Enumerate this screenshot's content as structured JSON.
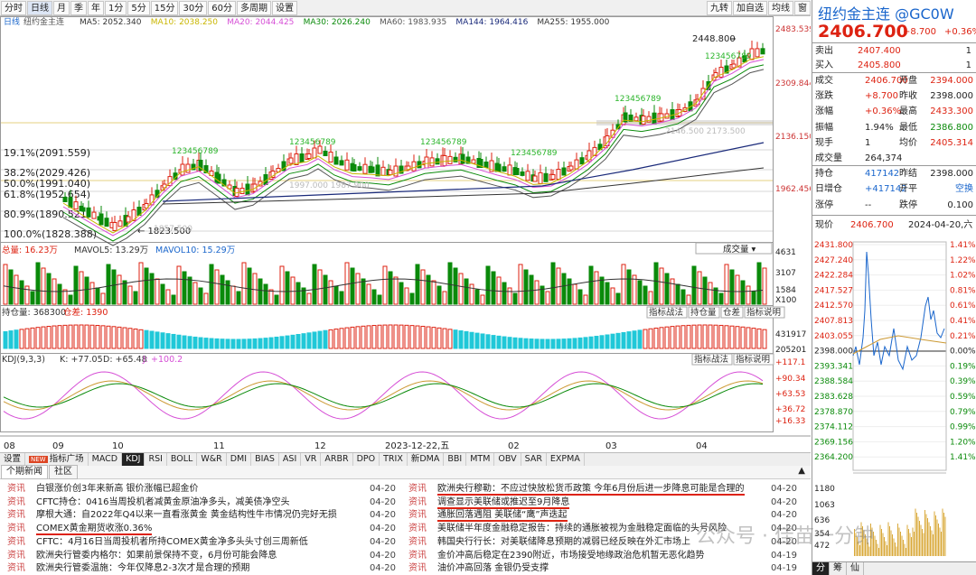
{
  "toolbar": {
    "left": [
      "分时",
      "日线",
      "月",
      "季",
      "年",
      "1分",
      "5分",
      "15分",
      "30分",
      "60分",
      "多周期",
      "设置"
    ],
    "right": [
      "九转",
      "加自选",
      "均线",
      "窗"
    ]
  },
  "chart": {
    "title": "日线",
    "name": "纽约金主连",
    "ma": [
      {
        "label": "MA5: 2052.340",
        "color": "#333"
      },
      {
        "label": "MA10: 2038.250",
        "color": "#c9b600"
      },
      {
        "label": "MA20: 2044.425",
        "color": "#d64fd6"
      },
      {
        "label": "MA30: 2026.240",
        "color": "#0a8a0a"
      },
      {
        "label": "MA60: 1983.935",
        "color": "#555"
      },
      {
        "label": "MA144: 1964.416",
        "color": "#1a2a7a"
      },
      {
        "label": "MA255: 1955.000",
        "color": "#333"
      }
    ],
    "yaxis": [
      "2483.539",
      "2309.844",
      "2136.150",
      "1962.456"
    ],
    "fib": [
      "19.1%(2091.559)",
      "38.2%(2029.426)",
      "50.0%(1991.040)",
      "61.8%(1952.654)",
      "80.9%(1890.521)",
      "100.0%(1828.388)"
    ],
    "high_label": "2448.800",
    "low_label": "1823.500",
    "mid_labels": [
      "2146.500",
      "2173.500",
      "1857.500",
      "1997.000",
      "1987.900"
    ],
    "volume": {
      "title": "总量: 16.23万",
      "mavol5": "MAVOL5: 13.29万",
      "mavol10": "MAVOL10: 15.29万",
      "dropdown": "成交量",
      "yaxis": [
        "4631",
        "3107",
        "1584"
      ],
      "unit": "X100"
    },
    "oi": {
      "title": "持仓量: 368300",
      "zengcang": "仓差: 1390",
      "buttons": [
        "指标战法",
        "持仓量",
        "仓差",
        "指标说明"
      ],
      "yaxis": [
        "431917",
        "205201"
      ]
    },
    "kdj": {
      "title": "KDJ(9,3,3)",
      "k": "K: +77.05",
      "d": "D: +65.48",
      "j": "J: +100.2",
      "buttons": [
        "指标战法",
        "指标说明"
      ],
      "yaxis": [
        "+117.1",
        "+90.34",
        "+63.53",
        "+36.72",
        "+16.33"
      ]
    },
    "xaxis": [
      "08",
      "09",
      "10",
      "11",
      "12",
      "2023-12-22,五",
      "02",
      "03",
      "04"
    ]
  },
  "subtabs": [
    "设置",
    "指标广场",
    "MACD",
    "KDJ",
    "RSI",
    "BOLL",
    "W&R",
    "DMI",
    "BIAS",
    "ASI",
    "VR",
    "ARBR",
    "DPO",
    "TRIX",
    "新DMA",
    "BBI",
    "MTM",
    "OBV",
    "SAR",
    "EXPMA"
  ],
  "new_badge": "NEW",
  "newstabs": [
    "个期新闻",
    "社区"
  ],
  "news_left": [
    {
      "tag": "资讯",
      "text": "白银涨价创3年来新高 银价涨幅已超金价",
      "date": "04-20"
    },
    {
      "tag": "资讯",
      "text": "CFTC持仓：0416当周投机者减黄金原油净多头，减美债净空头",
      "date": "04-20"
    },
    {
      "tag": "资讯",
      "text": "摩根大通：自2022年Q4以来一直看涨黄金 黄金结构性牛市情况仍完好无损",
      "date": "04-20"
    },
    {
      "tag": "资讯",
      "text": "COMEX黄金期货收涨0.36%",
      "date": "04-20"
    },
    {
      "tag": "资讯",
      "text": "CFTC：4月16日当周投机者所持COMEX黄金净多头头寸创三周新低",
      "date": "04-20"
    },
    {
      "tag": "资讯",
      "text": "欧洲央行管委内格尔：如果前景保持不变，6月份可能会降息",
      "date": "04-20"
    },
    {
      "tag": "资讯",
      "text": "欧洲央行管委温施：今年仅降息2-3次才是合理的预期",
      "date": "04-20"
    }
  ],
  "news_right": [
    {
      "tag": "资讯",
      "text": "欧洲央行穆勒：不应过快放松货币政策 今年6月份后进一步降息可能是合理的",
      "date": "04-20"
    },
    {
      "tag": "资讯",
      "text": "调查显示美联储或推迟至9月降息",
      "date": "04-20"
    },
    {
      "tag": "资讯",
      "text": "通胀回落遇阻 美联储“鹰”声迭起",
      "date": "04-20"
    },
    {
      "tag": "资讯",
      "text": "美联储半年度金融稳定报告：持续的通胀被视为金融稳定面临的头号风险",
      "date": "04-20"
    },
    {
      "tag": "资讯",
      "text": "韩国央行行长：对美联储降息预期的减弱已经反映在外汇市场上",
      "date": "04-20"
    },
    {
      "tag": "资讯",
      "text": "金价冲高后稳定在2390附近，市场接受地缘政治危机暂无恶化趋势",
      "date": "04-19"
    },
    {
      "tag": "资讯",
      "text": "油价冲高回落 金银仍受支撑",
      "date": "04-19"
    }
  ],
  "side": {
    "symbol": "纽约金主连 @GC0W",
    "price": "2406.700",
    "change": "+8.700",
    "pct": "+0.36%",
    "sell": {
      "label": "卖出",
      "price": "2407.400",
      "qty": "1"
    },
    "buy": {
      "label": "买入",
      "price": "2405.800",
      "qty": "1"
    },
    "rows": [
      [
        "成交",
        "2406.700",
        "开盘",
        "2394.000"
      ],
      [
        "涨跌",
        "+8.700",
        "昨收",
        "2398.000"
      ],
      [
        "涨幅",
        "+0.36%",
        "最高",
        "2433.300"
      ],
      [
        "振幅",
        "1.94%",
        "最低",
        "2386.800"
      ],
      [
        "现手",
        "1",
        "均价",
        "2405.314"
      ],
      [
        "成交量",
        "264,374",
        "",
        ""
      ],
      [
        "持仓",
        "417142",
        "昨结",
        "2398.000"
      ],
      [
        "日增仓",
        "+417142",
        "开平",
        "空换"
      ],
      [
        "涨停",
        "--",
        "跌停",
        "0.100"
      ]
    ],
    "now_label": "现价",
    "now_price": "2406.700",
    "now_date": "2024-04-20,六",
    "mini_left": [
      "2431.800",
      "2427.240",
      "2422.284",
      "2417.527",
      "2412.570",
      "2407.813",
      "2403.055",
      "2398.000",
      "2393.341",
      "2388.584",
      "2383.628",
      "2378.870",
      "2374.112",
      "2369.156",
      "2364.200"
    ],
    "mini_right": [
      "1.41%",
      "1.22%",
      "1.02%",
      "0.81%",
      "0.61%",
      "0.41%",
      "0.21%",
      "0.00%",
      "0.19%",
      "0.39%",
      "0.59%",
      "0.79%",
      "0.99%",
      "1.20%",
      "1.41%"
    ],
    "mini_vol": [
      "1180",
      "1063",
      "636",
      "354",
      "472"
    ],
    "bottom_tabs": [
      "分",
      "筹",
      "仙"
    ]
  },
  "watermark": "公众号 · 佳苗一分钟"
}
